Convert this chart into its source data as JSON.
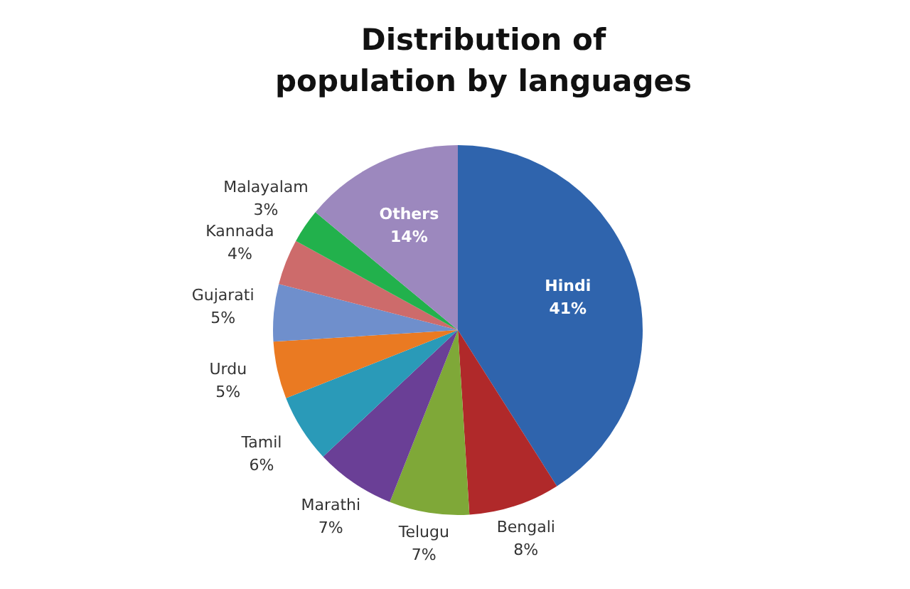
{
  "chart_data": {
    "type": "pie",
    "title": "Distribution of population by languages",
    "categories": [
      "Hindi",
      "Bengali",
      "Telugu",
      "Marathi",
      "Tamil",
      "Urdu",
      "Gujarati",
      "Kannada",
      "Malayalam",
      "Others"
    ],
    "values": [
      41,
      8,
      7,
      7,
      6,
      5,
      5,
      4,
      3,
      14
    ],
    "value_labels": [
      "41%",
      "8%",
      "7%",
      "7%",
      "6%",
      "5%",
      "5%",
      "4%",
      "3%",
      "14%"
    ],
    "colors": [
      "#2f64ad",
      "#b0292a",
      "#7fa838",
      "#6a3f96",
      "#2a9ab8",
      "#ea7a22",
      "#6f8fcc",
      "#cd6b6b",
      "#22b14c",
      "#9c88be"
    ],
    "legend": false
  }
}
